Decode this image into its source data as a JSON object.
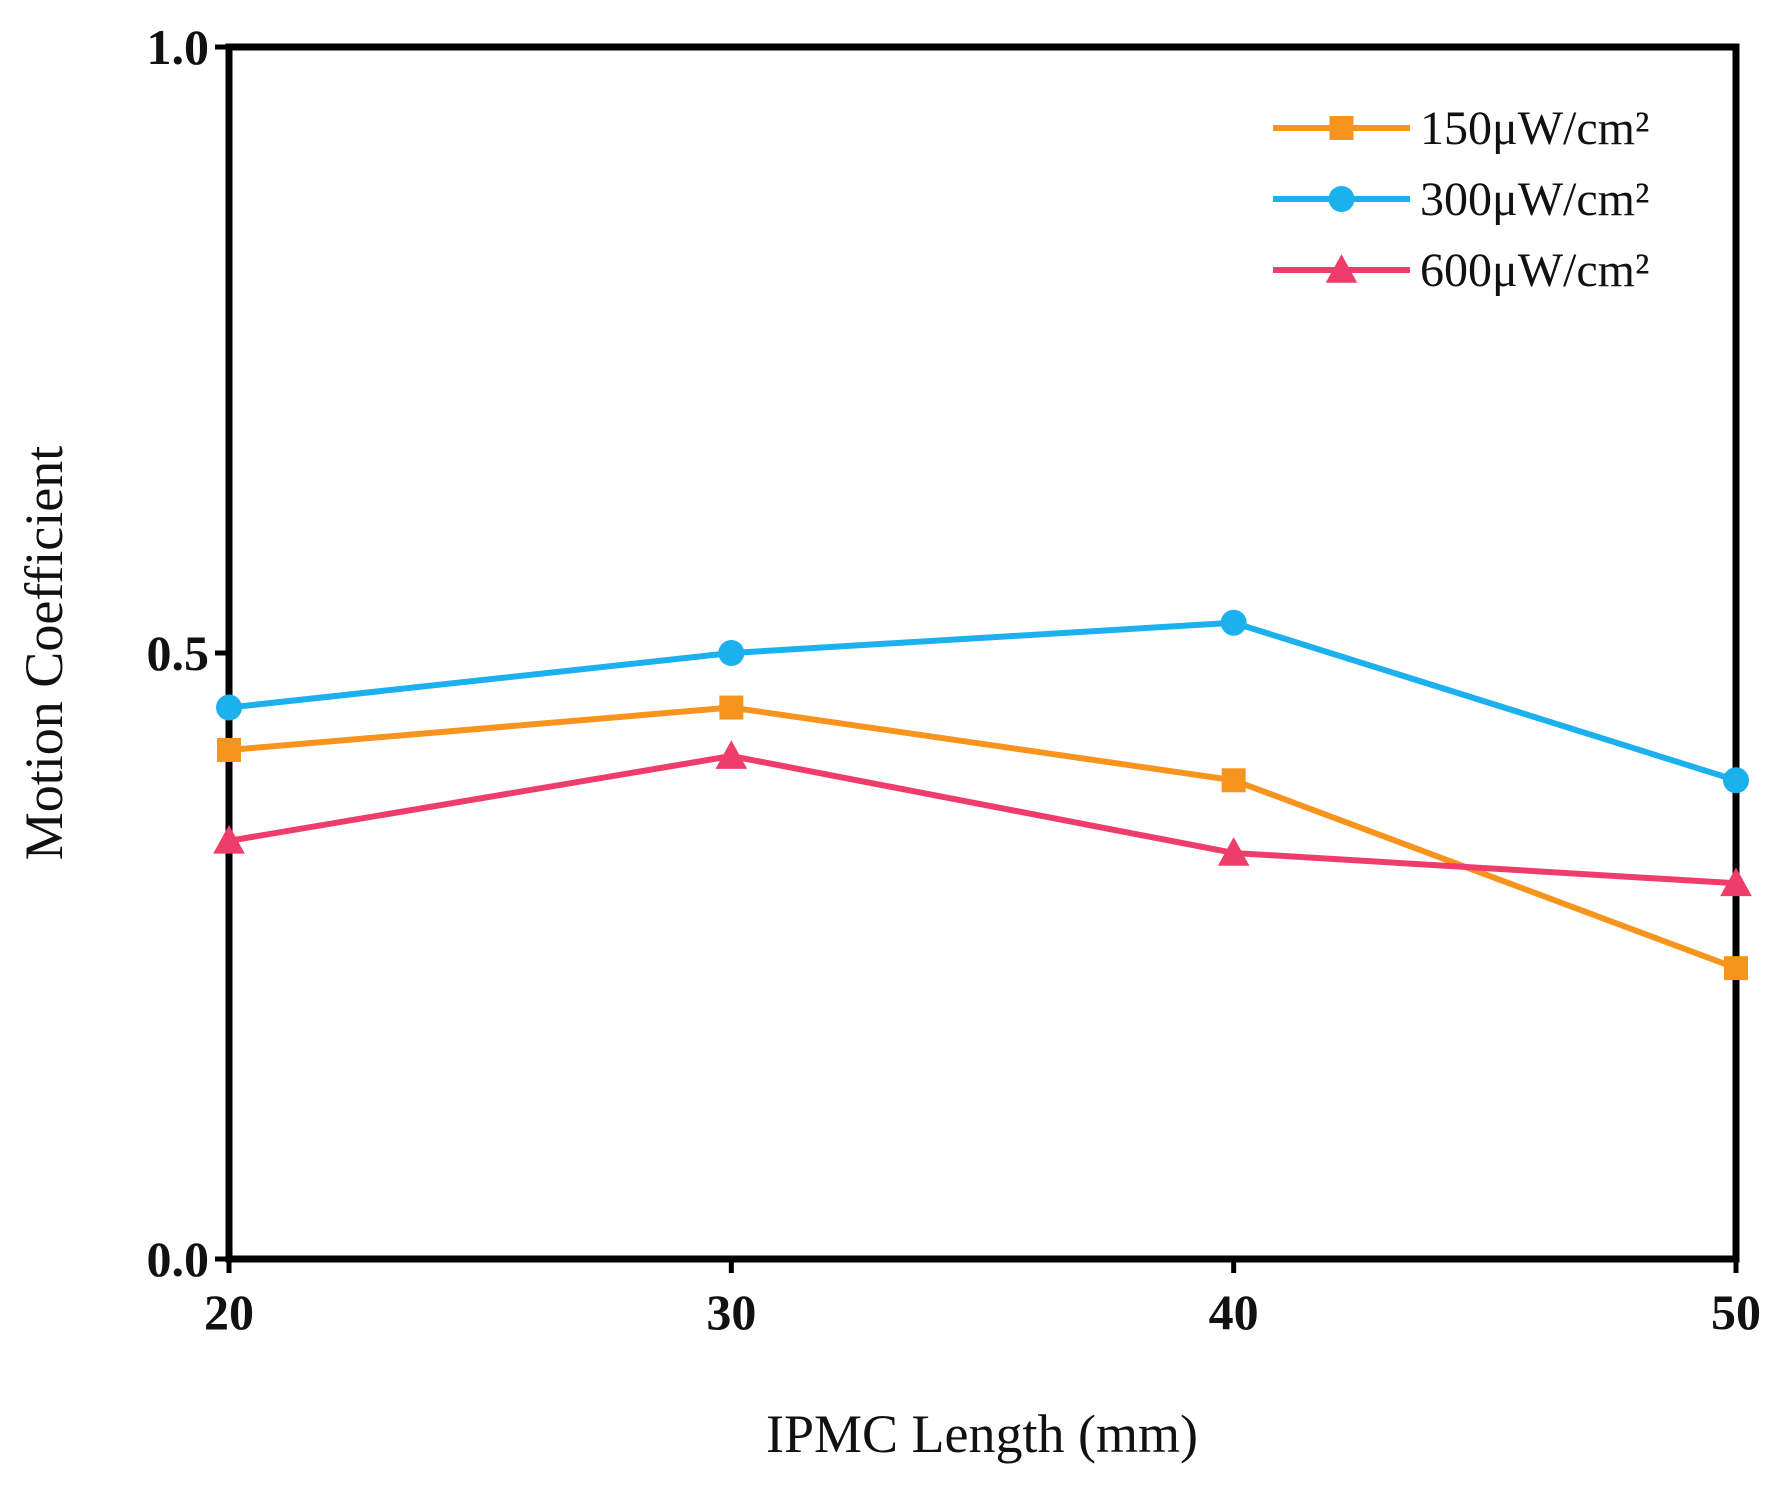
{
  "chart_data": {
    "type": "line",
    "title": "",
    "xlabel": "IPMC Length (mm)",
    "ylabel": "Motion Coefficient",
    "x": [
      20,
      30,
      40,
      50
    ],
    "xlim": [
      20,
      50
    ],
    "ylim": [
      0.0,
      1.0
    ],
    "xticks": [
      "20",
      "30",
      "40",
      "50"
    ],
    "yticks": [
      "0.0",
      "0.5",
      "1.0"
    ],
    "ytick_values": [
      0.0,
      0.5,
      1.0
    ],
    "grid": false,
    "legend_position": "top-right",
    "series": [
      {
        "name": "150μW/cm²",
        "values": [
          0.42,
          0.455,
          0.395,
          0.24
        ],
        "color": "#F7941D",
        "marker": "square"
      },
      {
        "name": "300μW/cm²",
        "values": [
          0.455,
          0.5,
          0.525,
          0.395
        ],
        "color": "#1CB0EE",
        "marker": "circle"
      },
      {
        "name": "600μW/cm²",
        "values": [
          0.345,
          0.415,
          0.335,
          0.31
        ],
        "color": "#EE3D6B",
        "marker": "triangle"
      }
    ]
  }
}
